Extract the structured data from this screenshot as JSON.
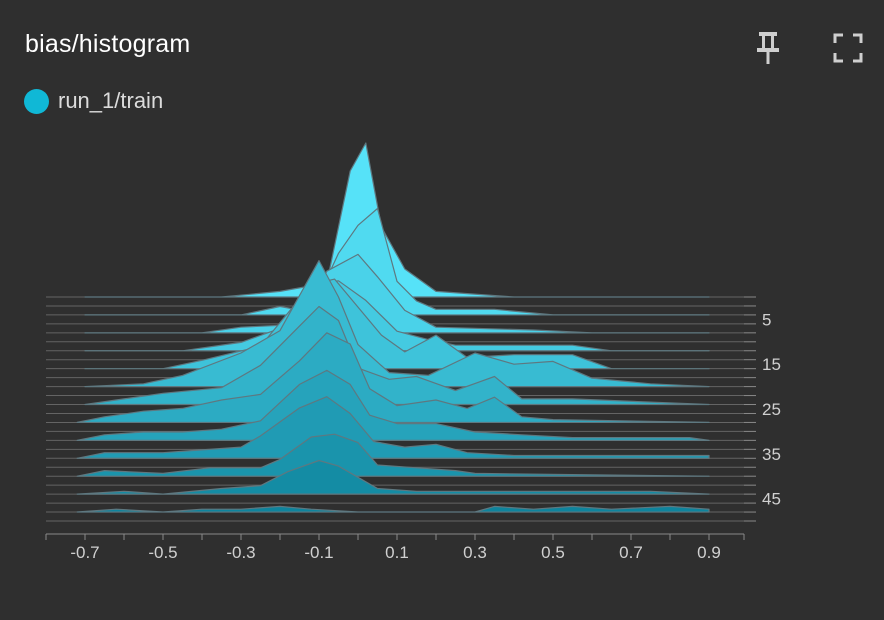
{
  "card": {
    "title": "bias/histogram",
    "pin_icon": "pin-icon",
    "expand_icon": "fullscreen-icon"
  },
  "legend": {
    "run_label": "run_1/train",
    "run_color": "#10b8d6"
  },
  "colors": {
    "background": "#2f2f2f",
    "axis": "#8a8a8a",
    "tick_text": "#d0d0d0",
    "front_fill": "#0b8099",
    "back_fill": "#56e2f8",
    "outline": "#5e7880"
  },
  "chart_data": {
    "type": "histogram-offset",
    "title": "bias/histogram",
    "legend": [
      "run_1/train"
    ],
    "x_ticks": [
      -0.7,
      -0.5,
      -0.3,
      -0.1,
      0.1,
      0.3,
      0.5,
      0.7,
      0.9
    ],
    "x_tick_labels": [
      "-0.7",
      "-0.5",
      "-0.3",
      "-0.1",
      "0.1",
      "0.3",
      "0.5",
      "0.7",
      "0.9"
    ],
    "xlim": [
      -0.72,
      0.92
    ],
    "step_ticks": [
      5,
      15,
      25,
      35,
      45
    ],
    "step_tick_labels": [
      "5",
      "15",
      "25",
      "35",
      "45"
    ],
    "step_range": [
      0,
      50
    ],
    "series": [
      {
        "step": 0,
        "points": [
          [
            -0.7,
            0
          ],
          [
            -0.35,
            0
          ],
          [
            -0.2,
            0.02
          ],
          [
            -0.08,
            0.05
          ],
          [
            -0.02,
            0.45
          ],
          [
            0.02,
            0.55
          ],
          [
            0.06,
            0.25
          ],
          [
            0.12,
            0.1
          ],
          [
            0.2,
            0.02
          ],
          [
            0.4,
            0
          ],
          [
            0.9,
            0
          ]
        ]
      },
      {
        "step": 4,
        "points": [
          [
            -0.7,
            0
          ],
          [
            -0.3,
            0
          ],
          [
            -0.2,
            0.03
          ],
          [
            -0.12,
            0.01
          ],
          [
            -0.05,
            0.22
          ],
          [
            0.0,
            0.32
          ],
          [
            0.05,
            0.38
          ],
          [
            0.1,
            0.12
          ],
          [
            0.15,
            0.05
          ],
          [
            0.2,
            0.02
          ],
          [
            0.35,
            0.02
          ],
          [
            0.5,
            0
          ],
          [
            0.9,
            0
          ]
        ]
      },
      {
        "step": 8,
        "points": [
          [
            -0.7,
            0
          ],
          [
            -0.4,
            0
          ],
          [
            -0.3,
            0.02
          ],
          [
            -0.15,
            0.03
          ],
          [
            -0.08,
            0.22
          ],
          [
            0.0,
            0.28
          ],
          [
            0.05,
            0.2
          ],
          [
            0.12,
            0.08
          ],
          [
            0.2,
            0.02
          ],
          [
            0.45,
            0.01
          ],
          [
            0.6,
            0
          ],
          [
            0.9,
            0
          ]
        ]
      },
      {
        "step": 12,
        "points": [
          [
            -0.7,
            0
          ],
          [
            -0.45,
            0
          ],
          [
            -0.3,
            0.03
          ],
          [
            -0.2,
            0.08
          ],
          [
            -0.12,
            0.24
          ],
          [
            -0.05,
            0.25
          ],
          [
            0.02,
            0.18
          ],
          [
            0.1,
            0.07
          ],
          [
            0.18,
            0.04
          ],
          [
            0.25,
            0.02
          ],
          [
            0.55,
            0.02
          ],
          [
            0.65,
            0
          ],
          [
            0.9,
            0
          ]
        ]
      },
      {
        "step": 16,
        "points": [
          [
            -0.7,
            0
          ],
          [
            -0.5,
            0
          ],
          [
            -0.4,
            0.03
          ],
          [
            -0.25,
            0.08
          ],
          [
            -0.12,
            0.3
          ],
          [
            -0.06,
            0.32
          ],
          [
            0.0,
            0.22
          ],
          [
            0.06,
            0.12
          ],
          [
            0.12,
            0.06
          ],
          [
            0.2,
            0.12
          ],
          [
            0.28,
            0.04
          ],
          [
            0.4,
            0.05
          ],
          [
            0.55,
            0.05
          ],
          [
            0.65,
            0
          ],
          [
            0.9,
            0
          ]
        ]
      },
      {
        "step": 20,
        "points": [
          [
            -0.7,
            0
          ],
          [
            -0.55,
            0.01
          ],
          [
            -0.45,
            0.04
          ],
          [
            -0.3,
            0.12
          ],
          [
            -0.2,
            0.2
          ],
          [
            -0.1,
            0.45
          ],
          [
            -0.05,
            0.32
          ],
          [
            0.0,
            0.15
          ],
          [
            0.08,
            0.05
          ],
          [
            0.18,
            0.04
          ],
          [
            0.3,
            0.12
          ],
          [
            0.4,
            0.08
          ],
          [
            0.5,
            0.09
          ],
          [
            0.6,
            0.03
          ],
          [
            0.75,
            0.01
          ],
          [
            0.9,
            0
          ]
        ]
      },
      {
        "step": 24,
        "points": [
          [
            -0.7,
            0
          ],
          [
            -0.6,
            0.02
          ],
          [
            -0.5,
            0.04
          ],
          [
            -0.35,
            0.06
          ],
          [
            -0.25,
            0.14
          ],
          [
            -0.15,
            0.28
          ],
          [
            -0.1,
            0.35
          ],
          [
            -0.05,
            0.3
          ],
          [
            0.0,
            0.13
          ],
          [
            0.08,
            0.09
          ],
          [
            0.15,
            0.1
          ],
          [
            0.25,
            0.05
          ],
          [
            0.35,
            0.1
          ],
          [
            0.42,
            0.02
          ],
          [
            0.55,
            0.02
          ],
          [
            0.9,
            0
          ]
        ]
      },
      {
        "step": 28,
        "points": [
          [
            -0.72,
            0
          ],
          [
            -0.65,
            0.02
          ],
          [
            -0.55,
            0.04
          ],
          [
            -0.45,
            0.05
          ],
          [
            -0.35,
            0.08
          ],
          [
            -0.25,
            0.1
          ],
          [
            -0.15,
            0.22
          ],
          [
            -0.08,
            0.32
          ],
          [
            -0.02,
            0.28
          ],
          [
            0.03,
            0.12
          ],
          [
            0.1,
            0.06
          ],
          [
            0.2,
            0.08
          ],
          [
            0.28,
            0.05
          ],
          [
            0.35,
            0.09
          ],
          [
            0.42,
            0.02
          ],
          [
            0.5,
            0.01
          ],
          [
            0.9,
            0
          ]
        ]
      },
      {
        "step": 32,
        "points": [
          [
            -0.72,
            0
          ],
          [
            -0.65,
            0.02
          ],
          [
            -0.55,
            0.03
          ],
          [
            -0.45,
            0.03
          ],
          [
            -0.35,
            0.04
          ],
          [
            -0.25,
            0.07
          ],
          [
            -0.15,
            0.2
          ],
          [
            -0.08,
            0.25
          ],
          [
            -0.02,
            0.2
          ],
          [
            0.03,
            0.09
          ],
          [
            0.1,
            0.06
          ],
          [
            0.2,
            0.06
          ],
          [
            0.3,
            0.03
          ],
          [
            0.42,
            0.02
          ],
          [
            0.55,
            0.01
          ],
          [
            0.7,
            0.01
          ],
          [
            0.85,
            0.01
          ],
          [
            0.9,
            0
          ]
        ]
      },
      {
        "step": 36,
        "points": [
          [
            -0.72,
            0
          ],
          [
            -0.65,
            0.02
          ],
          [
            -0.5,
            0.02
          ],
          [
            -0.4,
            0.03
          ],
          [
            -0.3,
            0.04
          ],
          [
            -0.25,
            0.08
          ],
          [
            -0.15,
            0.18
          ],
          [
            -0.08,
            0.22
          ],
          [
            -0.02,
            0.16
          ],
          [
            0.04,
            0.06
          ],
          [
            0.12,
            0.04
          ],
          [
            0.2,
            0.05
          ],
          [
            0.28,
            0.02
          ],
          [
            0.4,
            0.01
          ],
          [
            0.55,
            0.01
          ],
          [
            0.7,
            0.01
          ],
          [
            0.9,
            0.01
          ],
          [
            0.9,
            0
          ]
        ]
      },
      {
        "step": 40,
        "points": [
          [
            -0.72,
            0
          ],
          [
            -0.65,
            0.02
          ],
          [
            -0.5,
            0.01
          ],
          [
            -0.38,
            0.03
          ],
          [
            -0.25,
            0.03
          ],
          [
            -0.2,
            0.06
          ],
          [
            -0.12,
            0.14
          ],
          [
            -0.06,
            0.15
          ],
          [
            0.0,
            0.12
          ],
          [
            0.05,
            0.04
          ],
          [
            0.15,
            0.03
          ],
          [
            0.25,
            0.02
          ],
          [
            0.3,
            0.01
          ],
          [
            0.9,
            0
          ]
        ]
      },
      {
        "step": 44,
        "points": [
          [
            -0.72,
            0
          ],
          [
            -0.6,
            0.01
          ],
          [
            -0.5,
            0.0
          ],
          [
            -0.35,
            0.02
          ],
          [
            -0.25,
            0.03
          ],
          [
            -0.18,
            0.08
          ],
          [
            -0.1,
            0.12
          ],
          [
            -0.05,
            0.1
          ],
          [
            0.0,
            0.06
          ],
          [
            0.05,
            0.02
          ],
          [
            0.15,
            0.01
          ],
          [
            0.35,
            0.01
          ],
          [
            0.45,
            0.01
          ],
          [
            0.55,
            0.01
          ],
          [
            0.65,
            0.01
          ],
          [
            0.75,
            0.01
          ],
          [
            0.9,
            0
          ]
        ]
      },
      {
        "step": 48,
        "points": [
          [
            -0.72,
            0
          ],
          [
            -0.62,
            0.01
          ],
          [
            -0.5,
            0.0
          ],
          [
            -0.4,
            0.01
          ],
          [
            -0.3,
            0.01
          ],
          [
            -0.2,
            0.02
          ],
          [
            -0.12,
            0.01
          ],
          [
            0.0,
            0.0
          ],
          [
            0.3,
            0.0
          ],
          [
            0.35,
            0.02
          ],
          [
            0.45,
            0.01
          ],
          [
            0.55,
            0.02
          ],
          [
            0.65,
            0.01
          ],
          [
            0.8,
            0.02
          ],
          [
            0.9,
            0.01
          ],
          [
            0.9,
            0
          ]
        ]
      }
    ]
  }
}
